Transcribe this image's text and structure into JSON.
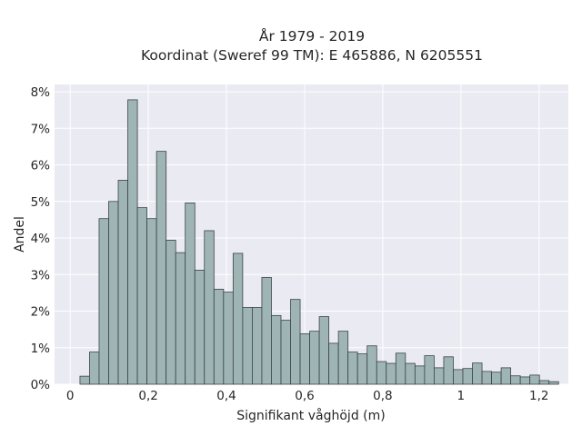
{
  "chart_data": {
    "type": "bar",
    "title_line1": "År 1979 - 2019",
    "title_line2": "Koordinat (Sweref 99 TM): E 465886, N 6205551",
    "xlabel": "Signifikant våghöjd (m)",
    "ylabel": "Andel",
    "xlim": [
      -0.04,
      1.275
    ],
    "ylim": [
      0,
      8.2
    ],
    "x_ticks": [
      0,
      0.2,
      0.4,
      0.6,
      0.8,
      1,
      1.2
    ],
    "x_tick_labels": [
      "0",
      "0,2",
      "0,4",
      "0,6",
      "0,8",
      "1",
      "1,2"
    ],
    "y_ticks": [
      0,
      1,
      2,
      3,
      4,
      5,
      6,
      7,
      8
    ],
    "y_tick_labels": [
      "0%",
      "1%",
      "2%",
      "3%",
      "4%",
      "5%",
      "6%",
      "7%",
      "8%"
    ],
    "grid": true,
    "bin_start": 0.025,
    "bin_width": 0.0245,
    "values": [
      0.22,
      0.88,
      4.53,
      5.0,
      5.58,
      7.78,
      4.83,
      4.53,
      6.37,
      3.94,
      3.6,
      4.96,
      3.12,
      4.2,
      2.6,
      2.52,
      3.58,
      2.1,
      2.1,
      2.92,
      1.88,
      1.75,
      2.32,
      1.38,
      1.45,
      1.85,
      1.12,
      1.45,
      0.88,
      0.83,
      1.05,
      0.62,
      0.57,
      0.85,
      0.57,
      0.5,
      0.78,
      0.45,
      0.75,
      0.4,
      0.43,
      0.58,
      0.35,
      0.33,
      0.45,
      0.23,
      0.2,
      0.25,
      0.1,
      0.07
    ],
    "colors": {
      "bar_fill": "#9fb5b5",
      "bar_stroke": "#3b4343",
      "plot_bg": "#eaeaf2",
      "grid": "#ffffff"
    }
  }
}
